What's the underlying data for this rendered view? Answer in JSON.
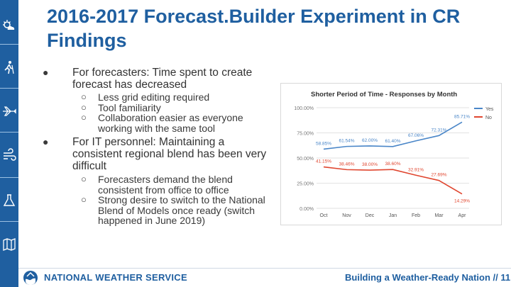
{
  "slide": {
    "title": "2016-2017 Forecast.Builder Experiment in CR Findings",
    "bullets": [
      {
        "text": "For forecasters: Time spent to create forecast has decreased",
        "subs": [
          "Less grid editing required",
          "Tool familiarity",
          "Collaboration easier as everyone working with the same tool"
        ]
      },
      {
        "text": "For IT personnel: Maintaining a consistent regional blend has been very difficult",
        "subs": [
          "Forecasters demand the blend consistent from office to office",
          "Strong desire to switch to the National Blend of Models once ready (switch happened in June 2019)"
        ]
      }
    ],
    "bullet_glyph": "●",
    "sub_glyph": "○"
  },
  "sidebar_icons": [
    "weather-icon",
    "hiker-icon",
    "airplane-icon",
    "wind-icon",
    "flask-icon",
    "map-icon"
  ],
  "footer": {
    "left": "NATIONAL WEATHER SERVICE",
    "right": "Building a Weather-Ready Nation // 11"
  },
  "colors": {
    "brand_blue": "#1f5fa0",
    "series_yes": "#4a86c8",
    "series_no": "#e0462f"
  },
  "chart_data": {
    "type": "line",
    "title": "Shorter Period of Time - Responses by Month",
    "categories": [
      "Oct",
      "Nov",
      "Dec",
      "Jan",
      "Feb",
      "Mar",
      "Apr"
    ],
    "series": [
      {
        "name": "Yes",
        "values": [
          58.85,
          61.54,
          62.0,
          61.4,
          67.06,
          72.31,
          85.71
        ],
        "labels": [
          "58.85%",
          "61.54%",
          "62.00%",
          "61.40%",
          "67.06%",
          "72.31%",
          "85.71%"
        ]
      },
      {
        "name": "No",
        "values": [
          41.15,
          38.46,
          38.0,
          38.6,
          32.91,
          27.69,
          14.29
        ],
        "labels": [
          "41.15%",
          "38.46%",
          "38.00%",
          "38.60%",
          "32.91%",
          "27.69%",
          "14.29%"
        ]
      }
    ],
    "yticks": [
      "0.00%",
      "25.00%",
      "50.00%",
      "75.00%",
      "100.00%"
    ],
    "ylim": [
      0,
      100
    ],
    "grid": true,
    "legend": "right"
  }
}
